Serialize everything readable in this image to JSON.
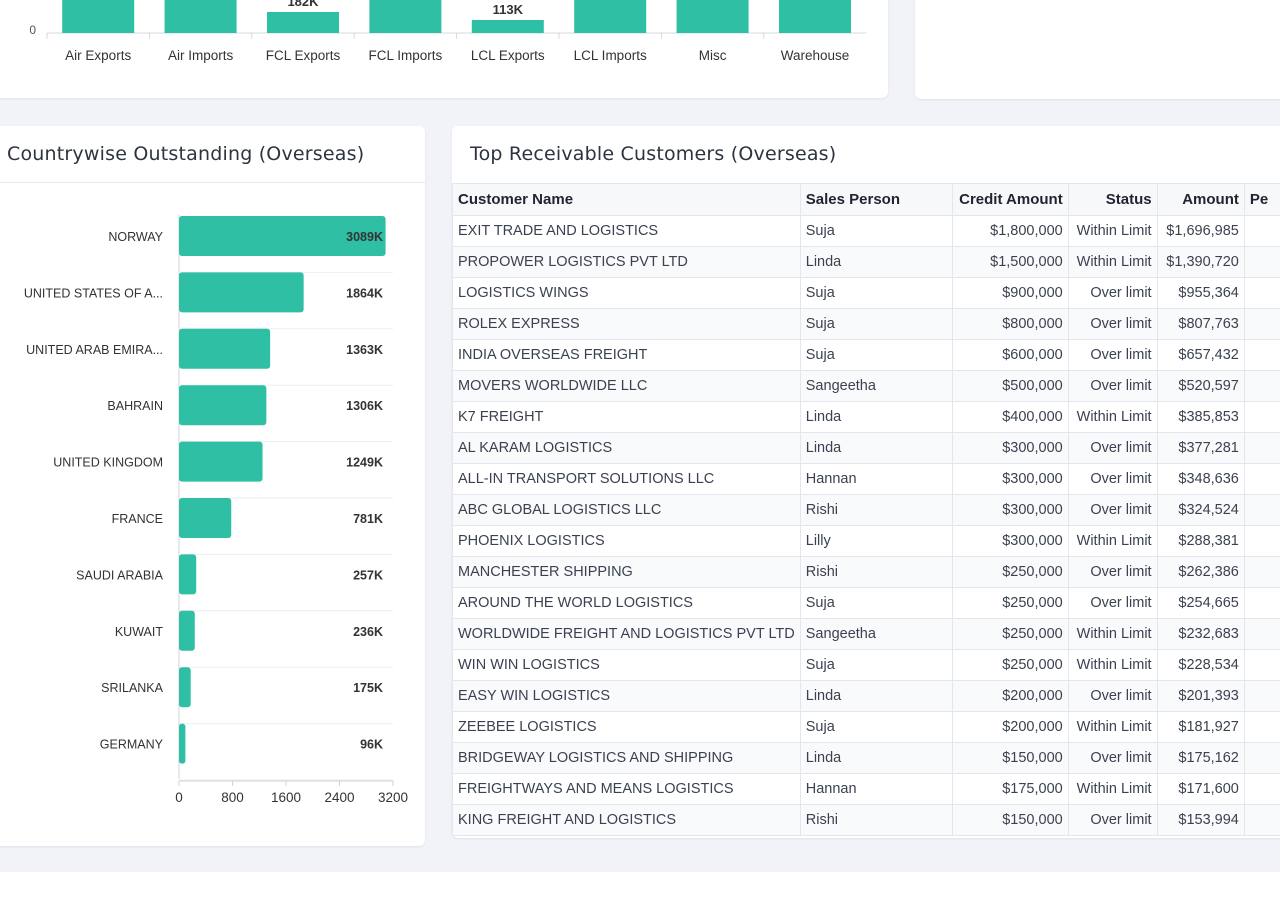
{
  "top_chart": {
    "categories": [
      "Air Exports",
      "Air Imports",
      "FCL Exports",
      "FCL Imports",
      "LCL Exports",
      "LCL Imports",
      "Misc",
      "Warehouse"
    ],
    "partial_labels": {
      "FCL Exports": "182K",
      "LCL Exports": "113K"
    },
    "y_zero_label": "0",
    "bar_color": "#2ebfa5"
  },
  "country_card": {
    "title": "Countrywise Outstanding (Overseas)"
  },
  "chart_data": {
    "type": "bar",
    "orientation": "horizontal",
    "title": "Countrywise Outstanding (Overseas)",
    "categories": [
      "NORWAY",
      "UNITED STATES OF A...",
      "UNITED ARAB EMIRA...",
      "BAHRAIN",
      "UNITED KINGDOM",
      "FRANCE",
      "SAUDI ARABIA",
      "KUWAIT",
      "SRILANKA",
      "GERMANY"
    ],
    "values": [
      3089,
      1864,
      1363,
      1306,
      1249,
      781,
      257,
      236,
      175,
      96
    ],
    "value_labels": [
      "3089K",
      "1864K",
      "1363K",
      "1306K",
      "1249K",
      "781K",
      "257K",
      "236K",
      "175K",
      "96K"
    ],
    "xlim": [
      0,
      3200
    ],
    "xticks": [
      "0",
      "800",
      "1600",
      "2400",
      "3200"
    ],
    "bar_color": "#2ebfa5"
  },
  "customers_card": {
    "title": "Top Receivable Customers (Overseas)",
    "columns": [
      "Customer Name",
      "Sales Person",
      "Credit Amount",
      "Status",
      "Amount",
      "Pe"
    ],
    "rows": [
      [
        "EXIT TRADE AND LOGISTICS",
        "Suja",
        "$1,800,000",
        "Within Limit",
        "$1,696,985"
      ],
      [
        "PROPOWER LOGISTICS PVT LTD",
        "Linda",
        "$1,500,000",
        "Within Limit",
        "$1,390,720"
      ],
      [
        "LOGISTICS WINGS",
        "Suja",
        "$900,000",
        "Over limit",
        "$955,364"
      ],
      [
        "ROLEX EXPRESS",
        "Suja",
        "$800,000",
        "Over limit",
        "$807,763"
      ],
      [
        "INDIA OVERSEAS FREIGHT",
        "Suja",
        "$600,000",
        "Over limit",
        "$657,432"
      ],
      [
        "MOVERS WORLDWIDE LLC",
        "Sangeetha",
        "$500,000",
        "Over limit",
        "$520,597"
      ],
      [
        "K7 FREIGHT",
        "Linda",
        "$400,000",
        "Within Limit",
        "$385,853"
      ],
      [
        "AL KARAM LOGISTICS",
        "Linda",
        "$300,000",
        "Over limit",
        "$377,281"
      ],
      [
        "ALL-IN TRANSPORT SOLUTIONS LLC",
        "Hannan",
        "$300,000",
        "Over limit",
        "$348,636"
      ],
      [
        "ABC GLOBAL LOGISTICS LLC",
        "Rishi",
        "$300,000",
        "Over limit",
        "$324,524"
      ],
      [
        "PHOENIX LOGISTICS",
        "Lilly",
        "$300,000",
        "Within Limit",
        "$288,381"
      ],
      [
        "MANCHESTER SHIPPING",
        "Rishi",
        "$250,000",
        "Over limit",
        "$262,386"
      ],
      [
        "AROUND THE WORLD LOGISTICS",
        "Suja",
        "$250,000",
        "Over limit",
        "$254,665"
      ],
      [
        "WORLDWIDE FREIGHT AND LOGISTICS PVT LTD",
        "Sangeetha",
        "$250,000",
        "Within Limit",
        "$232,683"
      ],
      [
        "WIN WIN LOGISTICS",
        "Suja",
        "$250,000",
        "Within Limit",
        "$228,534"
      ],
      [
        "EASY WIN LOGISTICS",
        "Linda",
        "$200,000",
        "Over limit",
        "$201,393"
      ],
      [
        "ZEEBEE LOGISTICS",
        "Suja",
        "$200,000",
        "Within Limit",
        "$181,927"
      ],
      [
        "BRIDGEWAY LOGISTICS AND SHIPPING",
        "Linda",
        "$150,000",
        "Over limit",
        "$175,162"
      ],
      [
        "FREIGHTWAYS AND MEANS LOGISTICS",
        "Hannan",
        "$175,000",
        "Within Limit",
        "$171,600"
      ],
      [
        "KING FREIGHT AND LOGISTICS",
        "Rishi",
        "$150,000",
        "Over limit",
        "$153,994"
      ]
    ]
  }
}
